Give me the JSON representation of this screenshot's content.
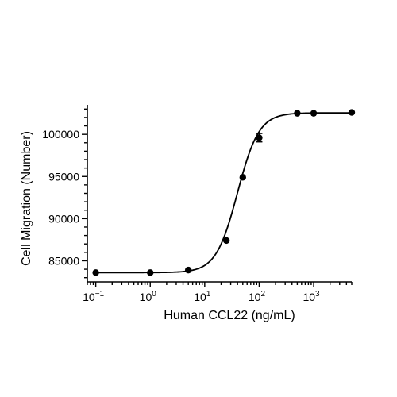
{
  "chart_data": {
    "type": "scatter",
    "xlabel": "Human CCL22 (ng/mL)",
    "ylabel": "Cell Migration (Number)",
    "x_scale": "log",
    "xlim": [
      0.07,
      5000
    ],
    "ylim": [
      82500,
      103500
    ],
    "x_ticks": [
      {
        "base": "10",
        "exp": "−1",
        "value": 0.1
      },
      {
        "base": "10",
        "exp": "0",
        "value": 1
      },
      {
        "base": "10",
        "exp": "1",
        "value": 10
      },
      {
        "base": "10",
        "exp": "2",
        "value": 100
      },
      {
        "base": "10",
        "exp": "3",
        "value": 1000
      }
    ],
    "y_ticks": [
      {
        "label": "85000",
        "value": 85000
      },
      {
        "label": "90000",
        "value": 90000
      },
      {
        "label": "95000",
        "value": 95000
      },
      {
        "label": "100000",
        "value": 100000
      }
    ],
    "points": [
      {
        "x": 0.1,
        "y": 83600,
        "err": 0
      },
      {
        "x": 1,
        "y": 83600,
        "err": 0
      },
      {
        "x": 5,
        "y": 83900,
        "err": 0
      },
      {
        "x": 25,
        "y": 87400,
        "err": 0
      },
      {
        "x": 50,
        "y": 94900,
        "err": 0
      },
      {
        "x": 100,
        "y": 99600,
        "err": 500
      },
      {
        "x": 500,
        "y": 102500,
        "err": 0
      },
      {
        "x": 1000,
        "y": 102500,
        "err": 0
      },
      {
        "x": 5000,
        "y": 102600,
        "err": 0
      }
    ],
    "fit": {
      "model": "4PL",
      "bottom": 83600,
      "top": 102550,
      "ec50": 40,
      "hill": 2.2
    },
    "grid": false,
    "legend": "none"
  }
}
